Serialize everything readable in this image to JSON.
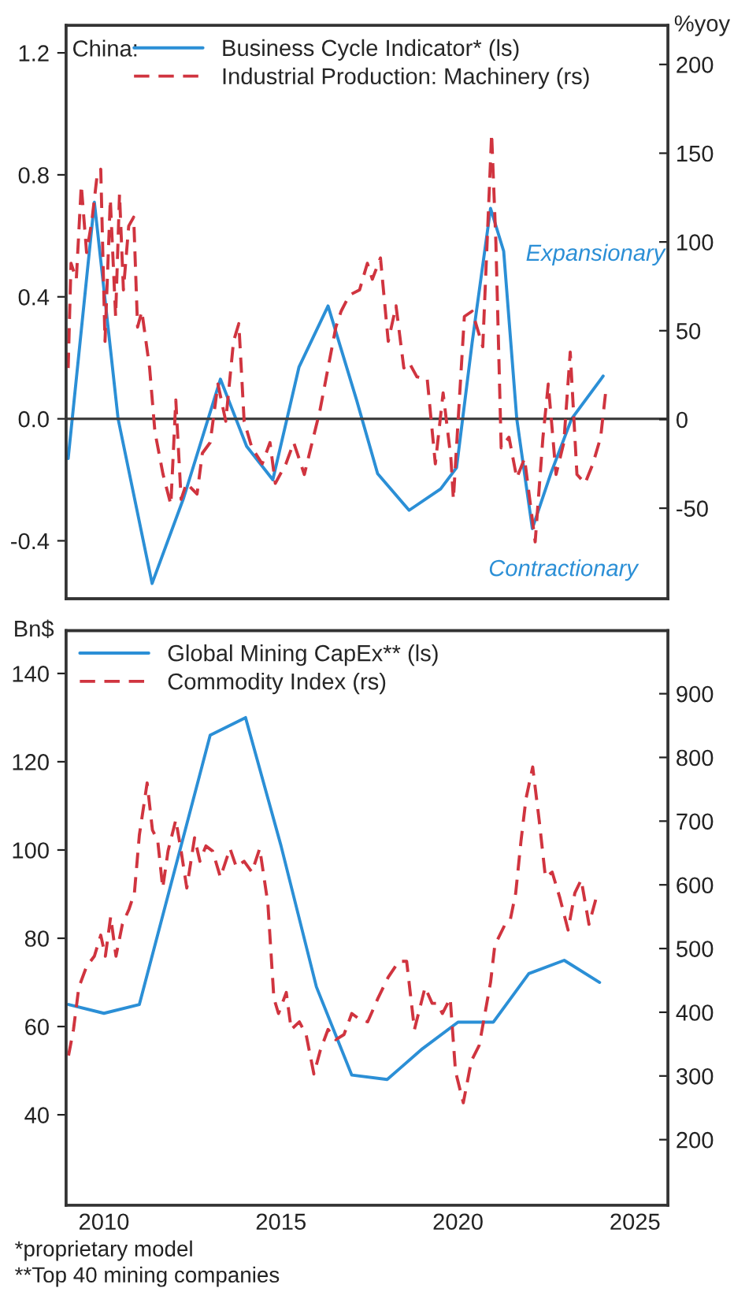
{
  "chart_data": [
    {
      "type": "line",
      "legend_title": "China:",
      "y2label": "%yoy",
      "xlim": [
        2008.93,
        2025.93
      ],
      "ylim": [
        -0.59,
        1.29
      ],
      "yticks": [
        {
          "value": -0.4,
          "label": "-0.4"
        },
        {
          "value": 0,
          "label": "0.0"
        },
        {
          "value": 0.4,
          "label": "0.4"
        },
        {
          "value": 0.8,
          "label": "0.8"
        },
        {
          "value": 1.2,
          "label": "1.2"
        }
      ],
      "y2lim": [
        -101,
        222
      ],
      "y2ticks": [
        -50,
        0,
        50,
        100,
        150,
        200
      ],
      "tick_labels": "y",
      "grid": false,
      "legend": "top left",
      "ref_lines": [
        {
          "axis": "y",
          "value": 0,
          "color": "#404040",
          "line_style": "solid"
        }
      ],
      "annotations": [
        "Expansionary",
        "Contractionary"
      ],
      "series": [
        {
          "name": "Business Cycle Indicator* (ls)",
          "color": "#2b8fd6",
          "line_style": "solid",
          "axis": "y",
          "x": [
            2008.99,
            2009.73,
            2010.4,
            2011.36,
            2012.25,
            2013.29,
            2014.03,
            2014.77,
            2015.51,
            2016.33,
            2017.14,
            2017.73,
            2018.62,
            2019.51,
            2019.96,
            2020.4,
            2020.92,
            2021.29,
            2021.66,
            2022.1,
            2022.62,
            2023.21,
            2024.1
          ],
          "values": [
            -0.13,
            0.71,
            0.0,
            -0.54,
            -0.26,
            0.13,
            -0.09,
            -0.2,
            0.17,
            0.37,
            0.06,
            -0.18,
            -0.3,
            -0.23,
            -0.16,
            0.25,
            0.69,
            0.55,
            0.0,
            -0.36,
            -0.18,
            0.0,
            0.14
          ]
        },
        {
          "name": "Industrial Production: Machinery (rs)",
          "color": "#d0343f",
          "line_style": "dashed",
          "axis": "y2",
          "x": [
            2008.99,
            2009.07,
            2009.22,
            2009.36,
            2009.51,
            2009.66,
            2009.81,
            2009.91,
            2010.03,
            2010.18,
            2010.33,
            2010.44,
            2010.55,
            2010.7,
            2010.84,
            2010.95,
            2011.07,
            2011.29,
            2011.44,
            2011.67,
            2011.89,
            2012.03,
            2012.18,
            2012.33,
            2012.63,
            2012.78,
            2013.0,
            2013.22,
            2013.44,
            2013.66,
            2013.81,
            2013.96,
            2014.18,
            2014.47,
            2014.69,
            2014.84,
            2015.14,
            2015.36,
            2015.66,
            2015.88,
            2016.1,
            2016.33,
            2016.55,
            2016.7,
            2016.93,
            2017.22,
            2017.44,
            2017.58,
            2017.81,
            2018.03,
            2018.25,
            2018.47,
            2018.62,
            2018.84,
            2019.13,
            2019.36,
            2019.58,
            2019.8,
            2019.87,
            2020.18,
            2020.4,
            2020.7,
            2020.95,
            2021.07,
            2021.22,
            2021.44,
            2021.66,
            2021.88,
            2022.18,
            2022.4,
            2022.55,
            2022.77,
            2022.99,
            2023.17,
            2023.36,
            2023.59,
            2023.81,
            2024.03,
            2024.18
          ],
          "values": [
            29,
            88,
            79,
            132,
            94,
            112,
            138,
            141,
            44,
            124,
            58,
            127,
            73,
            109,
            114,
            52,
            61,
            29,
            -7,
            -31,
            -48,
            11,
            -45,
            -36,
            -42,
            -19,
            -13,
            20,
            -1,
            44,
            54,
            -1,
            -16,
            -25,
            -13,
            -36,
            -25,
            -13,
            -31,
            -13,
            5,
            29,
            52,
            61,
            70,
            73,
            88,
            79,
            91,
            44,
            64,
            29,
            32,
            24,
            23,
            -25,
            15,
            -22,
            -45,
            58,
            61,
            41,
            161,
            100,
            -16,
            -10,
            -33,
            -22,
            -69,
            -10,
            20,
            -31,
            -13,
            38,
            -31,
            -36,
            -25,
            -10,
            17
          ]
        }
      ]
    },
    {
      "type": "line",
      "ylabel": "Bn$",
      "xlim": [
        2008.93,
        2025.93
      ],
      "xticks": [
        2010,
        2015,
        2020,
        2025
      ],
      "ylim": [
        19.5,
        149.7
      ],
      "yticks": [
        40,
        60,
        80,
        100,
        120,
        140
      ],
      "y2lim": [
        97,
        999
      ],
      "y2ticks": [
        200,
        300,
        400,
        500,
        600,
        700,
        800,
        900
      ],
      "grid": false,
      "legend": "top left",
      "annotations": [
        "*proprietary model",
        "**Top 40 mining companies"
      ],
      "series": [
        {
          "name": "Global Mining CapEx** (ls)",
          "color": "#2b8fd6",
          "line_style": "solid",
          "axis": "y",
          "x": [
            2009,
            2010,
            2011,
            2013,
            2014,
            2015,
            2016,
            2017,
            2018,
            2019,
            2020,
            2021,
            2022,
            2023,
            2024
          ],
          "values": [
            65,
            63,
            65,
            126,
            130,
            101,
            69,
            49,
            48,
            55,
            61,
            61,
            72,
            75,
            70
          ]
        },
        {
          "name": "Commodity Index (rs)",
          "color": "#d0343f",
          "line_style": "dashed",
          "axis": "y2",
          "x": [
            2009.0,
            2009.14,
            2009.29,
            2009.51,
            2009.73,
            2009.91,
            2010.04,
            2010.19,
            2010.34,
            2010.52,
            2010.71,
            2010.86,
            2011.0,
            2011.22,
            2011.37,
            2011.52,
            2011.66,
            2011.81,
            2012.03,
            2012.18,
            2012.34,
            2012.56,
            2012.71,
            2012.88,
            2013.07,
            2013.29,
            2013.56,
            2013.74,
            2013.96,
            2014.18,
            2014.4,
            2014.63,
            2014.8,
            2014.93,
            2015.15,
            2015.29,
            2015.52,
            2015.71,
            2015.93,
            2016.11,
            2016.33,
            2016.55,
            2016.78,
            2017.0,
            2017.22,
            2017.45,
            2017.74,
            2018.03,
            2018.33,
            2018.55,
            2018.77,
            2019.07,
            2019.27,
            2019.41,
            2019.56,
            2019.78,
            2019.93,
            2020.15,
            2020.38,
            2020.6,
            2020.92,
            2021.04,
            2021.33,
            2021.48,
            2021.63,
            2021.78,
            2021.92,
            2022.11,
            2022.29,
            2022.47,
            2022.66,
            2022.88,
            2023.11,
            2023.3,
            2023.48,
            2023.7,
            2023.92
          ],
          "values": [
            332,
            373,
            439,
            472,
            488,
            521,
            488,
            550,
            488,
            538,
            562,
            587,
            678,
            760,
            686,
            669,
            595,
            653,
            702,
            653,
            595,
            674,
            637,
            661,
            653,
            612,
            657,
            628,
            637,
            620,
            657,
            571,
            422,
            398,
            431,
            373,
            385,
            365,
            303,
            340,
            373,
            357,
            365,
            398,
            389,
            385,
            422,
            455,
            480,
            480,
            373,
            439,
            414,
            414,
            398,
            422,
            307,
            258,
            324,
            348,
            447,
            505,
            538,
            546,
            587,
            669,
            735,
            785,
            703,
            612,
            620,
            579,
            529,
            587,
            608,
            538,
            583
          ]
        }
      ]
    }
  ]
}
